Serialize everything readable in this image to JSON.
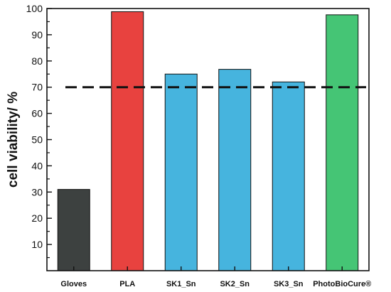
{
  "chart_data": {
    "type": "bar",
    "title": "",
    "xlabel": "",
    "ylabel": "cell viability/ %",
    "ylim": [
      0,
      100
    ],
    "yticks": [
      10,
      20,
      30,
      40,
      50,
      60,
      70,
      80,
      90,
      100
    ],
    "categories": [
      "Gloves",
      "PLA",
      "SK1_Sn",
      "SK2_Sn",
      "SK3_Sn",
      "PhotoBioCure®"
    ],
    "values": [
      31,
      98.8,
      75,
      76.8,
      72,
      97.6
    ],
    "bar_colors": [
      "#3d4140",
      "#e8423f",
      "#46b4de",
      "#46b4de",
      "#46b4de",
      "#45c575"
    ],
    "reference_line": {
      "value": 70,
      "style": "dashed",
      "color": "#111111"
    },
    "grid": false,
    "legend": "none"
  }
}
